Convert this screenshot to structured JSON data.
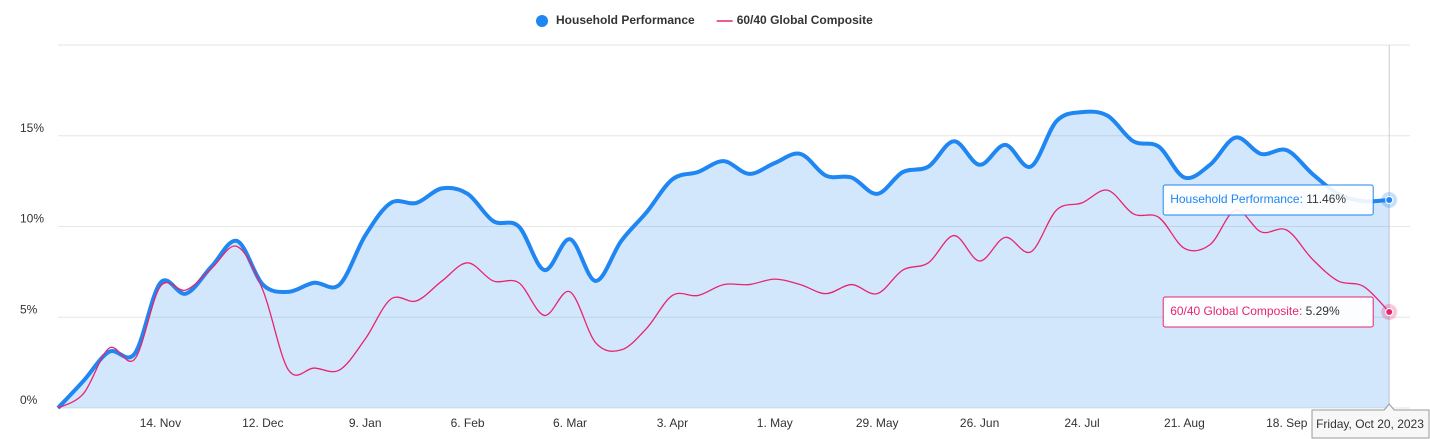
{
  "chart_data": {
    "type": "line",
    "categories": [
      null,
      null,
      null,
      null,
      "14. Nov",
      null,
      null,
      null,
      "12. Dec",
      null,
      null,
      null,
      "9. Jan",
      null,
      null,
      null,
      "6. Feb",
      null,
      null,
      null,
      "6. Mar",
      null,
      null,
      null,
      "3. Apr",
      null,
      null,
      null,
      "1. May",
      null,
      null,
      null,
      "29. May",
      null,
      null,
      null,
      "26. Jun",
      null,
      null,
      null,
      "24. Jul",
      null,
      null,
      null,
      "21. Aug",
      null,
      null,
      null,
      "18. Sep",
      null,
      null,
      null,
      null
    ],
    "series": [
      {
        "name": "Household Performance",
        "color": "#1f86f2",
        "area": true,
        "values": [
          0,
          1.5,
          3.1,
          3.0,
          6.9,
          6.3,
          7.8,
          9.2,
          6.8,
          6.4,
          6.9,
          6.8,
          9.5,
          11.3,
          11.3,
          12.1,
          11.8,
          10.3,
          10.0,
          7.6,
          9.3,
          7.0,
          9.2,
          10.8,
          12.6,
          13.0,
          13.6,
          12.9,
          13.5,
          14.0,
          12.8,
          12.7,
          11.8,
          13.0,
          13.3,
          14.7,
          13.4,
          14.5,
          13.3,
          15.8,
          16.3,
          16.1,
          14.7,
          14.4,
          12.7,
          13.4,
          14.9,
          14.0,
          14.2,
          12.9,
          11.8,
          11.4,
          11.46
        ],
        "last_label": "11.46%"
      },
      {
        "name": "60/40 Global Composite",
        "color": "#e8246f",
        "values": [
          0,
          0.8,
          3.3,
          2.7,
          6.7,
          6.5,
          7.7,
          8.9,
          6.5,
          2.1,
          2.2,
          2.1,
          3.8,
          6.0,
          5.9,
          7.0,
          8.0,
          7.0,
          6.9,
          5.1,
          6.4,
          3.6,
          3.2,
          4.4,
          6.2,
          6.2,
          6.8,
          6.8,
          7.1,
          6.8,
          6.3,
          6.8,
          6.3,
          7.6,
          8.0,
          9.5,
          8.1,
          9.4,
          8.6,
          10.9,
          11.3,
          12.0,
          10.7,
          10.5,
          8.8,
          9.0,
          10.9,
          9.7,
          9.8,
          8.2,
          7.0,
          6.7,
          5.29
        ],
        "last_label": "5.29%"
      }
    ],
    "ylim": [
      0,
      20
    ],
    "yticks": [
      {
        "value": 0,
        "label": "0%"
      },
      {
        "value": 5,
        "label": "5%"
      },
      {
        "value": 10,
        "label": "10%"
      },
      {
        "value": 15,
        "label": "15%"
      }
    ],
    "grid": true,
    "legend": "top",
    "tooltip_date": "Friday, Oct 20, 2023"
  }
}
